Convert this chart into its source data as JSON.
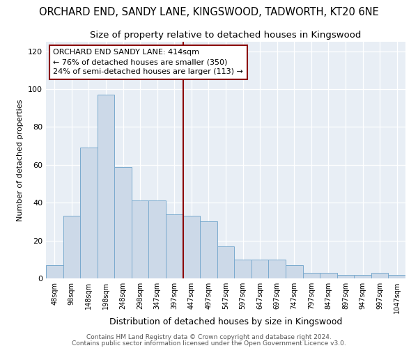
{
  "title": "ORCHARD END, SANDY LANE, KINGSWOOD, TADWORTH, KT20 6NE",
  "subtitle": "Size of property relative to detached houses in Kingswood",
  "xlabel": "Distribution of detached houses by size in Kingswood",
  "ylabel": "Number of detached properties",
  "bar_color": "#ccd9e8",
  "bar_edge_color": "#7aaace",
  "bg_color": "#e8eef5",
  "categories": [
    "48sqm",
    "98sqm",
    "148sqm",
    "198sqm",
    "248sqm",
    "298sqm",
    "347sqm",
    "397sqm",
    "447sqm",
    "497sqm",
    "547sqm",
    "597sqm",
    "647sqm",
    "697sqm",
    "747sqm",
    "797sqm",
    "847sqm",
    "897sqm",
    "947sqm",
    "997sqm",
    "1047sqm"
  ],
  "values": [
    7,
    33,
    69,
    97,
    59,
    41,
    41,
    34,
    33,
    30,
    17,
    10,
    10,
    10,
    7,
    3,
    3,
    2,
    2,
    3,
    2
  ],
  "ref_line_idx": 7,
  "annotation_line1": "ORCHARD END SANDY LANE: 414sqm",
  "annotation_line2": "← 76% of detached houses are smaller (350)",
  "annotation_line3": "24% of semi-detached houses are larger (113) →",
  "ylim": [
    0,
    125
  ],
  "yticks": [
    0,
    20,
    40,
    60,
    80,
    100,
    120
  ],
  "footer1": "Contains HM Land Registry data © Crown copyright and database right 2024.",
  "footer2": "Contains public sector information licensed under the Open Government Licence v3.0.",
  "title_fontsize": 10.5,
  "subtitle_fontsize": 9.5,
  "annotation_fontsize": 8,
  "footer_fontsize": 6.5,
  "ylabel_fontsize": 8,
  "xlabel_fontsize": 9
}
